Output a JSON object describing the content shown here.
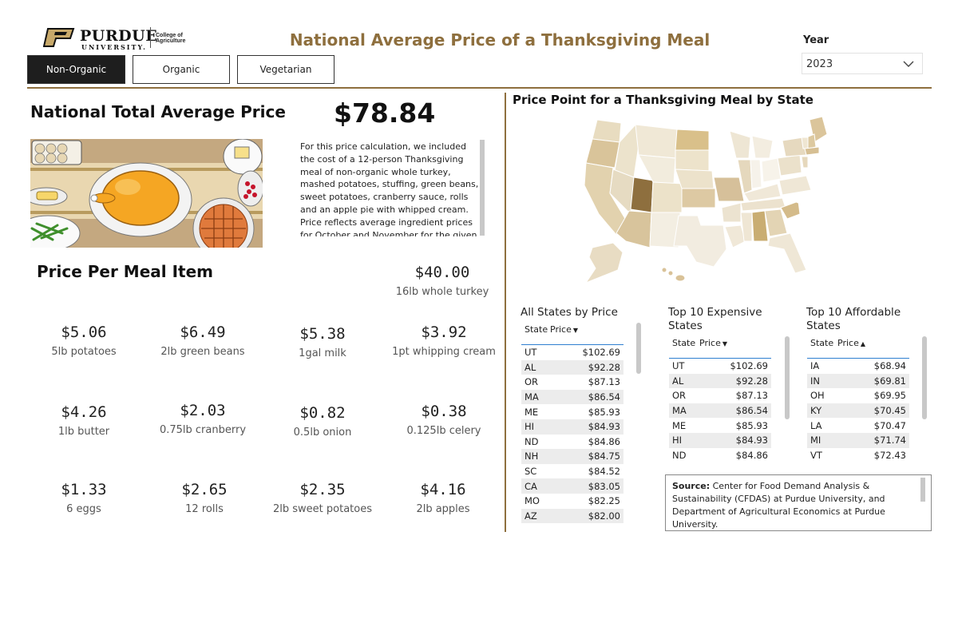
{
  "header": {
    "logo_word": "PURDUE",
    "logo_sub": "UNIVERSITY.",
    "logo_college": "College of Agriculture",
    "title": "National Average Price of a Thanksgiving Meal",
    "year_label": "Year",
    "year_value": "2023",
    "accent_color": "#8e6f3e"
  },
  "tabs": [
    {
      "label": "Non-Organic",
      "active": true
    },
    {
      "label": "Organic",
      "active": false
    },
    {
      "label": "Vegetarian",
      "active": false
    }
  ],
  "summary": {
    "title": "National Total Average Price",
    "price": "$78.84",
    "description": "For this price calculation, we included the cost of a 12-person Thanksgiving meal of non-organic whole turkey, mashed potatoes, stuffing, green beans, sweet potatoes, cranberry sauce, rolls and an apple pie with whipped cream. Price reflects average ingredient prices for October and November for the given year."
  },
  "items": {
    "title": "Price Per Meal Item",
    "list": [
      {
        "price": "$40.00",
        "label": "16lb whole turkey"
      },
      {
        "price": "$5.06",
        "label": "5lb potatoes"
      },
      {
        "price": "$6.49",
        "label": "2lb green beans"
      },
      {
        "price": "$5.38",
        "label": "1gal milk"
      },
      {
        "price": "$3.92",
        "label": "1pt whipping cream"
      },
      {
        "price": "$4.26",
        "label": "1lb butter"
      },
      {
        "price": "$2.03",
        "label": "0.75lb cranberry"
      },
      {
        "price": "$0.82",
        "label": "0.5lb onion"
      },
      {
        "price": "$0.38",
        "label": "0.125lb celery"
      },
      {
        "price": "$1.33",
        "label": "6 eggs"
      },
      {
        "price": "$2.65",
        "label": "12 rolls"
      },
      {
        "price": "$2.35",
        "label": "2lb sweet potatoes"
      },
      {
        "price": "$4.16",
        "label": "2lb apples"
      }
    ]
  },
  "map": {
    "title": "Price Point for a Thanksgiving Meal by State"
  },
  "all_states": {
    "title": "All States by Price",
    "col_state": "State",
    "col_price": "Price",
    "rows": [
      {
        "state": "UT",
        "price": "$102.69"
      },
      {
        "state": "AL",
        "price": "$92.28"
      },
      {
        "state": "OR",
        "price": "$87.13"
      },
      {
        "state": "MA",
        "price": "$86.54"
      },
      {
        "state": "ME",
        "price": "$85.93"
      },
      {
        "state": "HI",
        "price": "$84.93"
      },
      {
        "state": "ND",
        "price": "$84.86"
      },
      {
        "state": "NH",
        "price": "$84.75"
      },
      {
        "state": "SC",
        "price": "$84.52"
      },
      {
        "state": "CA",
        "price": "$83.05"
      },
      {
        "state": "MO",
        "price": "$82.25"
      },
      {
        "state": "AZ",
        "price": "$82.00"
      }
    ]
  },
  "top_expensive": {
    "title_line1": "Top 10 Expensive",
    "title_line2": "States",
    "col_state": "State",
    "col_price": "Price",
    "rows": [
      {
        "state": "UT",
        "price": "$102.69"
      },
      {
        "state": "AL",
        "price": "$92.28"
      },
      {
        "state": "OR",
        "price": "$87.13"
      },
      {
        "state": "MA",
        "price": "$86.54"
      },
      {
        "state": "ME",
        "price": "$85.93"
      },
      {
        "state": "HI",
        "price": "$84.93"
      },
      {
        "state": "ND",
        "price": "$84.86"
      }
    ]
  },
  "top_affordable": {
    "title_line1": "Top 10 Affordable",
    "title_line2": "States",
    "col_state": "State",
    "col_price": "Price",
    "rows": [
      {
        "state": "IA",
        "price": "$68.94"
      },
      {
        "state": "IN",
        "price": "$69.81"
      },
      {
        "state": "OH",
        "price": "$69.95"
      },
      {
        "state": "KY",
        "price": "$70.45"
      },
      {
        "state": "LA",
        "price": "$70.47"
      },
      {
        "state": "MI",
        "price": "$71.74"
      },
      {
        "state": "VT",
        "price": "$72.43"
      }
    ]
  },
  "source": {
    "label": "Source:",
    "text": " Center for Food Demand Analysis & Sustainability (CFDAS) at Purdue University, and Department of Agricultural Economics at Purdue University."
  }
}
